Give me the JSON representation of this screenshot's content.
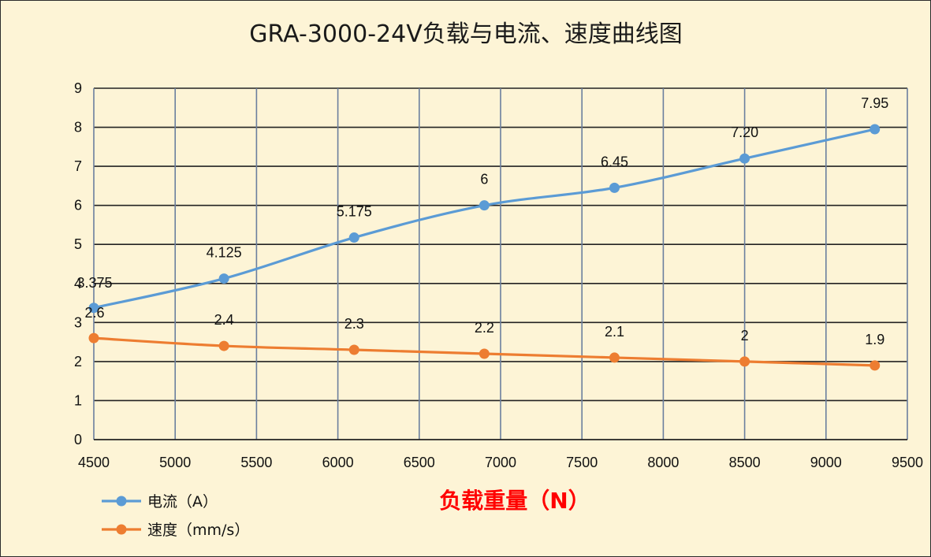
{
  "chart_data": {
    "type": "line",
    "title": "GRA-3000-24V负载与电流、速度曲线图",
    "xlabel": "负载重量（N）",
    "ylabel": "",
    "xlim": [
      4500,
      9500
    ],
    "ylim": [
      0,
      9
    ],
    "x_ticks": [
      4500,
      5000,
      5500,
      6000,
      6500,
      7000,
      7500,
      8000,
      8500,
      9000,
      9500
    ],
    "y_ticks": [
      0,
      1,
      2,
      3,
      4,
      5,
      6,
      7,
      8,
      9
    ],
    "grid": true,
    "legend_position": "bottom-left",
    "x": [
      4500,
      5300,
      6100,
      6900,
      7700,
      8500,
      9300
    ],
    "series": [
      {
        "name": "电流（A）",
        "color": "#5b9bd5",
        "values": [
          3.375,
          4.125,
          5.175,
          6,
          6.45,
          7.2,
          7.95
        ],
        "labels": [
          "3.375",
          "4.125",
          "5.175",
          "6",
          "6.45",
          "7.20",
          "7.95"
        ]
      },
      {
        "name": "速度（mm/s）",
        "color": "#ed7d31",
        "values": [
          2.6,
          2.4,
          2.3,
          2.2,
          2.1,
          2,
          1.9
        ],
        "labels": [
          "2.6",
          "2.4",
          "2.3",
          "2.2",
          "2.1",
          "2",
          "1.9"
        ]
      }
    ]
  }
}
